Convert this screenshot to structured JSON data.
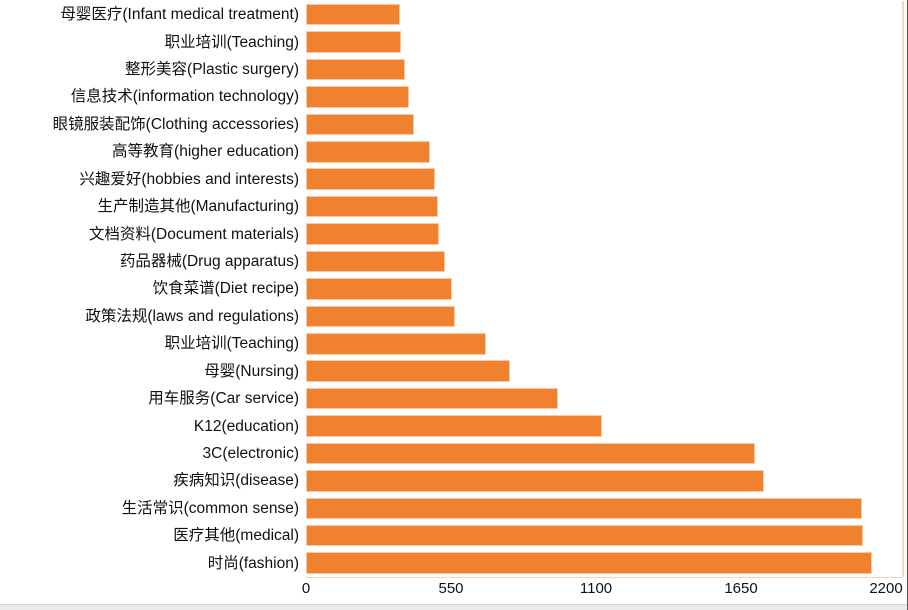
{
  "chart_data": {
    "type": "bar",
    "orientation": "horizontal",
    "title": "",
    "xlabel": "",
    "ylabel": "",
    "categories": [
      "母婴医疗(Infant medical treatment)",
      "职业培训(Teaching)",
      "整形美容(Plastic surgery)",
      "信息技术(information technology)",
      "眼镜服装配饰(Clothing accessories)",
      "高等教育(higher education)",
      "兴趣爱好(hobbies and interests)",
      "生产制造其他(Manufacturing)",
      "文档资料(Document materials)",
      "药品器械(Drug apparatus)",
      "饮食菜谱(Diet recipe)",
      "政策法规(laws and regulations)",
      "职业培训(Teaching)",
      "母婴(Nursing)",
      "用车服务(Car service)",
      "K12(education)",
      "3C(electronic)",
      "疾病知识(disease)",
      "生活常识(common sense)",
      "医疗其他(medical)",
      "时尚(fashion)"
    ],
    "values": [
      355,
      361,
      374,
      389,
      411,
      469,
      489,
      501,
      503,
      527,
      555,
      565,
      681,
      772,
      954,
      1123,
      1702,
      1738,
      2110,
      2114,
      2148
    ],
    "xlim": [
      0,
      2200
    ],
    "xticks": [
      0,
      550,
      1100,
      1650,
      2200
    ],
    "grid": false,
    "legend": false,
    "bar_color": "#F0812F",
    "axis_line_color": "#F4D6BC",
    "text_color": "#111111"
  }
}
